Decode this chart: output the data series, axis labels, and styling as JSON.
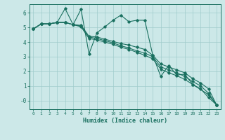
{
  "background_color": "#cce8e8",
  "grid_color": "#a0cccc",
  "line_color": "#1a7060",
  "xlabel": "Humidex (Indice chaleur)",
  "xlim": [
    -0.5,
    23.5
  ],
  "ylim": [
    -0.6,
    6.6
  ],
  "xticks": [
    0,
    1,
    2,
    3,
    4,
    5,
    6,
    7,
    8,
    9,
    10,
    11,
    12,
    13,
    14,
    15,
    16,
    17,
    18,
    19,
    20,
    21,
    22,
    23
  ],
  "yticks": [
    0,
    1,
    2,
    3,
    4,
    5,
    6
  ],
  "ytick_labels": [
    "-0",
    "1",
    "2",
    "3",
    "4",
    "5",
    "6"
  ],
  "series": [
    {
      "x": [
        0,
        1,
        2,
        3,
        4,
        5,
        6,
        7,
        8,
        9,
        10,
        11,
        12,
        13,
        14,
        15,
        16,
        17,
        18,
        19,
        20,
        22,
        23
      ],
      "y": [
        4.9,
        5.25,
        5.25,
        5.35,
        6.3,
        5.2,
        6.25,
        3.2,
        4.65,
        5.05,
        5.5,
        5.85,
        5.4,
        5.5,
        5.5,
        3.1,
        1.65,
        2.4,
        1.75,
        1.8,
        1.1,
        0.4,
        -0.3
      ]
    },
    {
      "x": [
        0,
        1,
        2,
        3,
        4,
        5,
        6,
        7,
        8,
        9,
        10,
        11,
        12,
        13,
        14,
        15,
        16,
        17,
        18,
        19,
        20,
        21,
        22,
        23
      ],
      "y": [
        4.9,
        5.25,
        5.25,
        5.35,
        5.35,
        5.2,
        5.15,
        4.4,
        4.35,
        4.2,
        4.05,
        3.9,
        3.8,
        3.65,
        3.5,
        3.1,
        2.5,
        2.3,
        2.1,
        1.9,
        1.5,
        1.2,
        0.8,
        -0.3
      ]
    },
    {
      "x": [
        0,
        1,
        2,
        3,
        4,
        5,
        6,
        7,
        8,
        9,
        10,
        11,
        12,
        13,
        14,
        15,
        16,
        17,
        18,
        19,
        20,
        21,
        22,
        23
      ],
      "y": [
        4.9,
        5.25,
        5.25,
        5.35,
        5.35,
        5.2,
        5.1,
        4.35,
        4.25,
        4.1,
        3.95,
        3.75,
        3.6,
        3.4,
        3.25,
        3.0,
        2.3,
        2.1,
        1.9,
        1.65,
        1.3,
        1.0,
        0.5,
        -0.3
      ]
    },
    {
      "x": [
        0,
        1,
        2,
        3,
        4,
        5,
        6,
        7,
        8,
        9,
        10,
        11,
        12,
        13,
        14,
        15,
        16,
        17,
        18,
        19,
        20,
        21,
        22,
        23
      ],
      "y": [
        4.9,
        5.25,
        5.25,
        5.35,
        5.35,
        5.2,
        5.05,
        4.25,
        4.15,
        4.0,
        3.85,
        3.65,
        3.5,
        3.3,
        3.1,
        2.85,
        2.15,
        1.9,
        1.7,
        1.45,
        1.1,
        0.8,
        0.2,
        -0.3
      ]
    }
  ]
}
